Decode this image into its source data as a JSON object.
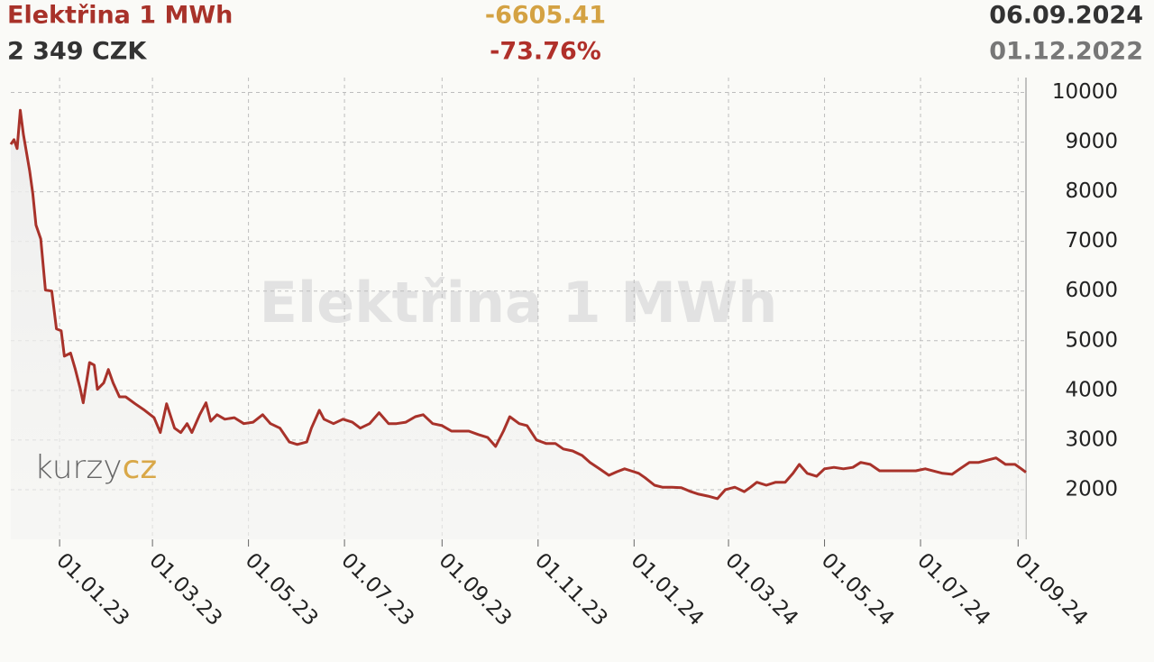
{
  "chart_data": {
    "type": "line",
    "title": "Elektřina 1 MWh",
    "price_label": "2 349 CZK",
    "change": "-6605.41",
    "change_percent": "-73.76%",
    "watermark_logo": [
      "kurzy",
      "cz"
    ],
    "color": "#a8322a",
    "xlim": [
      "01.12.2022",
      "06.09.2024"
    ],
    "xticks": [
      "01.01.23",
      "01.03.23",
      "01.05.23",
      "01.07.23",
      "01.09.23",
      "01.11.23",
      "01.01.24",
      "01.03.24",
      "01.05.24",
      "01.07.24",
      "01.09.24"
    ],
    "ylim": [
      1000,
      10300
    ],
    "yticks": [
      2000,
      3000,
      4000,
      5000,
      6000,
      7000,
      8000,
      9000,
      10000
    ],
    "grid": true,
    "x": [
      "01.12.22",
      "03.12.22",
      "05.12.22",
      "07.12.22",
      "09.12.22",
      "13.12.22",
      "15.12.22",
      "17.12.22",
      "20.12.22",
      "23.12.22",
      "27.12.22",
      "30.12.22",
      "02.01.23",
      "04.01.23",
      "08.01.23",
      "11.01.23",
      "14.01.23",
      "16.01.23",
      "20.01.23",
      "23.01.23",
      "25.01.23",
      "29.01.23",
      "01.02.23",
      "04.02.23",
      "08.02.23",
      "12.02.23",
      "18.02.23",
      "24.02.23",
      "02.03.23",
      "06.03.23",
      "10.03.23",
      "15.03.23",
      "19.03.23",
      "23.03.23",
      "26.03.23",
      "31.03.23",
      "04.04.23",
      "07.04.23",
      "11.04.23",
      "16.04.23",
      "22.04.23",
      "28.04.23",
      "04.05.23",
      "10.05.23",
      "15.05.23",
      "21.05.23",
      "27.05.23",
      "01.06.23",
      "07.06.23",
      "10.06.23",
      "15.06.23",
      "18.06.23",
      "24.06.23",
      "30.06.23",
      "06.07.23",
      "11.07.23",
      "17.07.23",
      "23.07.23",
      "29.07.23",
      "03.08.23",
      "09.08.23",
      "15.08.23",
      "20.08.23",
      "26.08.23",
      "01.09.23",
      "07.09.23",
      "12.09.23",
      "18.09.23",
      "24.09.23",
      "30.09.23",
      "05.10.23",
      "10.10.23",
      "14.10.23",
      "20.10.23",
      "25.10.23",
      "31.10.23",
      "06.11.23",
      "12.11.23",
      "17.11.23",
      "23.11.23",
      "29.11.23",
      "04.12.23",
      "10.12.23",
      "16.12.23",
      "21.12.23",
      "26.12.23",
      "30.12.23",
      "04.01.24",
      "08.01.24",
      "14.01.24",
      "19.01.24",
      "25.01.24",
      "31.01.24",
      "06.02.24",
      "11.02.24",
      "17.02.24",
      "23.02.24",
      "28.02.24",
      "05.03.24",
      "11.03.24",
      "15.03.24",
      "19.03.24",
      "25.03.24",
      "31.03.24",
      "06.04.24",
      "11.04.24",
      "15.04.24",
      "20.04.24",
      "26.04.24",
      "01.05.24",
      "07.05.24",
      "13.05.24",
      "19.05.24",
      "24.05.24",
      "30.05.24",
      "05.06.24",
      "16.06.24",
      "28.06.24",
      "04.07.24",
      "15.07.24",
      "21.07.24",
      "26.07.24",
      "01.08.24",
      "07.08.24",
      "13.08.24",
      "18.08.24",
      "24.08.24",
      "30.08.24",
      "03.09.24",
      "06.09.24"
    ],
    "values": [
      8954.41,
      9050,
      8870,
      9640,
      9150,
      8420,
      7960,
      7330,
      7050,
      6020,
      6000,
      5240,
      5200,
      4690,
      4750,
      4420,
      4050,
      3750,
      4560,
      4510,
      4020,
      4150,
      4420,
      4150,
      3870,
      3870,
      3730,
      3600,
      3450,
      3150,
      3730,
      3240,
      3150,
      3330,
      3150,
      3510,
      3750,
      3380,
      3510,
      3420,
      3450,
      3330,
      3360,
      3510,
      3330,
      3240,
      2960,
      2910,
      2960,
      3240,
      3600,
      3420,
      3330,
      3420,
      3360,
      3240,
      3330,
      3550,
      3330,
      3330,
      3360,
      3470,
      3510,
      3330,
      3290,
      3180,
      3180,
      3180,
      3110,
      3050,
      2870,
      3180,
      3470,
      3330,
      3290,
      3000,
      2930,
      2930,
      2820,
      2780,
      2690,
      2550,
      2420,
      2290,
      2360,
      2420,
      2380,
      2330,
      2240,
      2090,
      2050,
      2050,
      2040,
      1960,
      1910,
      1870,
      1820,
      2000,
      2050,
      1960,
      2050,
      2150,
      2090,
      2150,
      2150,
      2330,
      2510,
      2330,
      2270,
      2420,
      2450,
      2420,
      2450,
      2550,
      2510,
      2380,
      2380,
      2380,
      2420,
      2330,
      2310,
      2420,
      2550,
      2550,
      2600,
      2640,
      2510,
      2510,
      2420,
      2349
    ]
  }
}
